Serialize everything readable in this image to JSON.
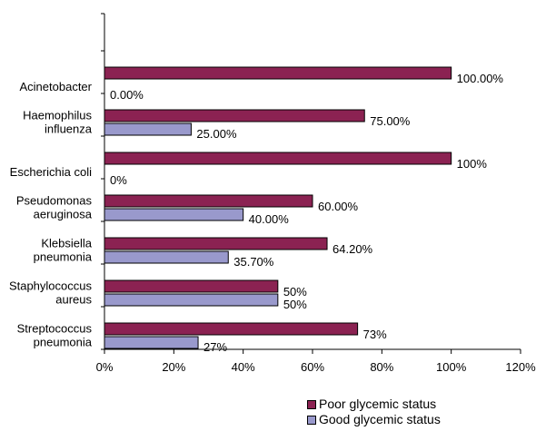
{
  "chart_data": {
    "type": "bar",
    "orientation": "horizontal",
    "categories": [
      [
        "Acinetobacter"
      ],
      [
        "Haemophilus",
        "influenza"
      ],
      [
        "Escherichia coli"
      ],
      [
        "Pseudomonas",
        "aeruginosa"
      ],
      [
        "Klebsiella",
        "pneumonia"
      ],
      [
        "Staphylococcus",
        "aureus"
      ],
      [
        "Streptococcus",
        "pneumonia"
      ]
    ],
    "series": [
      {
        "name": "Poor glycemic status",
        "color": "#8b2252",
        "values": [
          100,
          75,
          100,
          60,
          64.2,
          50,
          73
        ],
        "labels": [
          "100.00%",
          "75.00%",
          "100%",
          "60.00%",
          "64.20%",
          "50%",
          "73%"
        ]
      },
      {
        "name": "Good glycemic status",
        "color": "#9999cc",
        "values": [
          0,
          25,
          0,
          40,
          35.7,
          50,
          27
        ],
        "labels": [
          "0.00%",
          "25.00%",
          "0%",
          "40.00%",
          "35.70%",
          "50%",
          "27%"
        ]
      }
    ],
    "xlim": [
      0,
      120
    ],
    "xticks": [
      0,
      20,
      40,
      60,
      80,
      100,
      120
    ],
    "xtick_labels": [
      "0%",
      "20%",
      "40%",
      "60%",
      "80%",
      "100%",
      "120%"
    ],
    "grid": false,
    "legend_position": "bottom-right"
  }
}
